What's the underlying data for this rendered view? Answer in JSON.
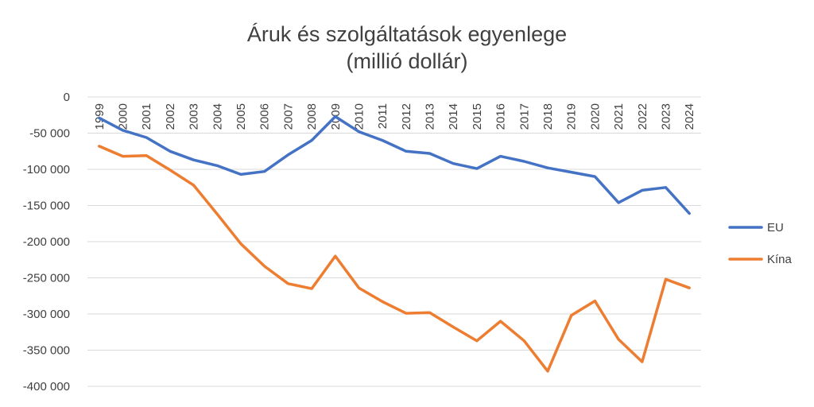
{
  "chart_data": {
    "type": "line",
    "title": "Áruk és szolgáltatások egyenlege",
    "subtitle": "(millió dollár)",
    "xlabel": "",
    "ylabel": "",
    "ylim": [
      -400000,
      0
    ],
    "yticks": [
      0,
      -50000,
      -100000,
      -150000,
      -200000,
      -250000,
      -300000,
      -350000,
      -400000
    ],
    "ytick_labels": [
      "0",
      "-50 000",
      "-100 000",
      "-150 000",
      "-200 000",
      "-250 000",
      "-300 000",
      "-350 000",
      "-400 000"
    ],
    "grid": true,
    "legend_position": "right",
    "categories": [
      "1999",
      "2000",
      "2001",
      "2002",
      "2003",
      "2004",
      "2005",
      "2006",
      "2007",
      "2008",
      "2009",
      "2010",
      "2011",
      "2012",
      "2013",
      "2014",
      "2015",
      "2016",
      "2017",
      "2018",
      "2019",
      "2020",
      "2021",
      "2022",
      "2023",
      "2024"
    ],
    "series": [
      {
        "name": "EU",
        "color": "#4472c4",
        "values": [
          -29000,
          -46000,
          -56000,
          -75000,
          -87000,
          -95000,
          -107000,
          -103000,
          -80000,
          -60000,
          -27000,
          -48000,
          -60000,
          -75000,
          -78000,
          -92000,
          -99000,
          -82000,
          -89000,
          -98000,
          -104000,
          -110000,
          -146000,
          -129000,
          -125000,
          -161000
        ]
      },
      {
        "name": "Kína",
        "color": "#ed7d31",
        "values": [
          -68000,
          -82000,
          -81000,
          -101000,
          -122000,
          -162000,
          -203000,
          -234000,
          -258000,
          -265000,
          -220000,
          -264000,
          -283000,
          -299000,
          -298000,
          -318000,
          -337000,
          -310000,
          -337000,
          -379000,
          -302000,
          -282000,
          -335000,
          -366000,
          -252000,
          -264000
        ]
      }
    ]
  }
}
